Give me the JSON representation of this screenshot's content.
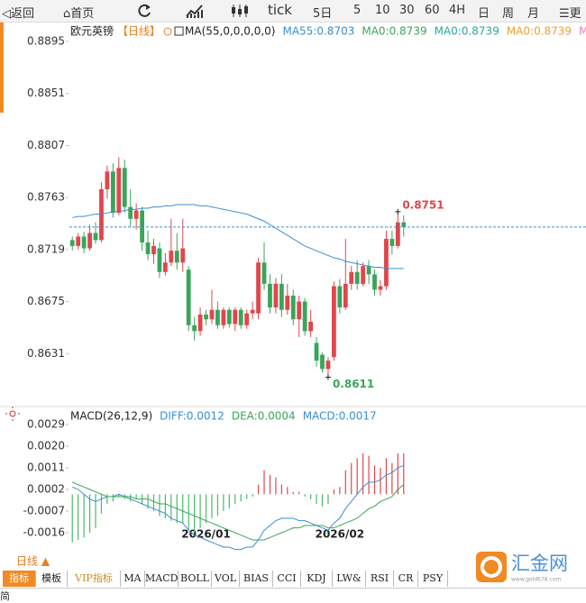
{
  "toolbar": [
    "返回",
    "首页",
    "tick",
    "5日",
    "5",
    "10",
    "30",
    "60",
    "4H",
    "日",
    "周",
    "月",
    "更"
  ],
  "indicator_tabs": [
    "指标",
    "模板",
    "VIP指标",
    "MA",
    "MACD",
    "BOLL",
    "VOL",
    "BIAS",
    "CCI",
    "KDJ",
    "LW&",
    "RSI",
    "CR",
    "PSY"
  ],
  "period_label": "日线 ▲",
  "logo": "汇金网",
  "logo_url": "www.gold678.com",
  "footer": "简",
  "chart_data": [
    {
      "type": "candlestick",
      "title": "欧元英镑",
      "subtitle": "【日线】",
      "indicator": "MA(55,0,0,0,0,0)",
      "categories": [
        null,
        null,
        null,
        null,
        null,
        null,
        null,
        null,
        null,
        null,
        null,
        null,
        null,
        null,
        null,
        null,
        null,
        null,
        null,
        null,
        null,
        null,
        null,
        "2026/01",
        null,
        null,
        null,
        null,
        null,
        null,
        null,
        null,
        null,
        null,
        null,
        null,
        null,
        null,
        null,
        null,
        null,
        null,
        null,
        null,
        null,
        null,
        "2026/02",
        null,
        null,
        null,
        null,
        null,
        null,
        null,
        null,
        null,
        null,
        null
      ],
      "open": [
        0.8727,
        0.8722,
        0.873,
        0.872,
        0.8733,
        0.8727,
        0.877,
        0.8785,
        0.875,
        0.8788,
        0.8755,
        0.8745,
        0.8752,
        0.8725,
        0.8715,
        0.872,
        0.87,
        0.8708,
        0.8718,
        0.8708,
        0.8702,
        0.8655,
        0.865,
        0.8664,
        0.866,
        0.8668,
        0.8655,
        0.8668,
        0.8656,
        0.8668,
        0.8655,
        0.8665,
        0.8665,
        0.8708,
        0.869,
        0.867,
        0.869,
        0.8668,
        0.868,
        0.866,
        0.8675,
        0.865,
        0.864,
        0.863,
        0.8618,
        0.8628,
        0.8688,
        0.867,
        0.869,
        0.87,
        0.869,
        0.8705,
        0.8698,
        0.8685,
        0.8688,
        0.8728,
        0.8722,
        0.8742
      ],
      "high": [
        0.873,
        0.8733,
        0.8734,
        0.874,
        0.8742,
        0.8776,
        0.879,
        0.8792,
        0.8797,
        0.8795,
        0.877,
        0.8758,
        0.8755,
        0.8735,
        0.8728,
        0.8725,
        0.8716,
        0.8745,
        0.8733,
        0.8745,
        0.8705,
        0.8662,
        0.867,
        0.8668,
        0.8685,
        0.8675,
        0.867,
        0.867,
        0.867,
        0.867,
        0.8668,
        0.8675,
        0.8712,
        0.8725,
        0.8698,
        0.8695,
        0.8698,
        0.869,
        0.8685,
        0.868,
        0.8678,
        0.8668,
        0.8645,
        0.8632,
        0.8628,
        0.8692,
        0.8694,
        0.8728,
        0.8705,
        0.871,
        0.8708,
        0.871,
        0.8702,
        0.8693,
        0.8735,
        0.8735,
        0.8751,
        0.8748
      ],
      "low": [
        0.8718,
        0.8719,
        0.8716,
        0.8718,
        0.8724,
        0.8725,
        0.8762,
        0.8746,
        0.8748,
        0.875,
        0.8738,
        0.8736,
        0.8718,
        0.871,
        0.8707,
        0.8695,
        0.8697,
        0.8705,
        0.8702,
        0.87,
        0.865,
        0.8642,
        0.8646,
        0.8655,
        0.8656,
        0.8652,
        0.8652,
        0.8653,
        0.865,
        0.8652,
        0.8652,
        0.866,
        0.866,
        0.8685,
        0.8665,
        0.8665,
        0.8662,
        0.8664,
        0.8655,
        0.8645,
        0.8646,
        0.8645,
        0.862,
        0.8615,
        0.8611,
        0.8625,
        0.8665,
        0.8668,
        0.8685,
        0.8685,
        0.8688,
        0.869,
        0.868,
        0.868,
        0.8685,
        0.8715,
        0.872,
        0.873
      ],
      "close": [
        0.8722,
        0.873,
        0.872,
        0.8733,
        0.8727,
        0.877,
        0.8785,
        0.875,
        0.8788,
        0.8755,
        0.8745,
        0.8752,
        0.8725,
        0.8715,
        0.8722,
        0.87,
        0.8708,
        0.8718,
        0.8708,
        0.872,
        0.8655,
        0.865,
        0.8664,
        0.866,
        0.8668,
        0.8655,
        0.8668,
        0.8656,
        0.8668,
        0.8655,
        0.8665,
        0.8668,
        0.8708,
        0.869,
        0.867,
        0.869,
        0.8668,
        0.868,
        0.866,
        0.8675,
        0.865,
        0.8658,
        0.8625,
        0.8618,
        0.8625,
        0.8688,
        0.867,
        0.869,
        0.87,
        0.869,
        0.8705,
        0.8698,
        0.8685,
        0.8688,
        0.8728,
        0.8722,
        0.8742,
        0.8738
      ],
      "up_color": "#e0464c",
      "down_color": "#3aa55a",
      "series": [
        {
          "name": "MA55:0.8703",
          "color": "#3b8ed3",
          "values": [
            0.8746,
            0.8747,
            0.8747,
            0.8748,
            0.8749,
            0.8749,
            0.875,
            0.8751,
            0.8751,
            0.8752,
            0.8753,
            0.8753,
            0.8754,
            0.8754,
            0.8755,
            0.8755,
            0.8756,
            0.8756,
            0.8757,
            0.8757,
            0.8757,
            0.8757,
            0.8756,
            0.8756,
            0.8755,
            0.8754,
            0.8753,
            0.8752,
            0.8751,
            0.875,
            0.8749,
            0.8747,
            0.8745,
            0.8743,
            0.874,
            0.8737,
            0.8734,
            0.8731,
            0.8728,
            0.8725,
            0.8722,
            0.872,
            0.8718,
            0.8716,
            0.8714,
            0.8712,
            0.8711,
            0.8709,
            0.8708,
            0.8707,
            0.8706,
            0.8705,
            0.8704,
            0.8704,
            0.8703,
            0.8703,
            0.8703,
            0.8703
          ]
        }
      ],
      "readouts": [
        {
          "label": "MA0:0.8739",
          "color": "#3aa55a"
        },
        {
          "label": "MA0:0.8739",
          "color": "#28a9a0"
        },
        {
          "label": "MA0:0.8739",
          "color": "#f0a030"
        },
        {
          "label": "MA0:",
          "color": "#e879c0"
        }
      ],
      "annotations": [
        {
          "label": "0.8751",
          "value": 0.8751,
          "index": 56,
          "color": "#e0464c"
        },
        {
          "label": "0.8611",
          "value": 0.8611,
          "index": 44,
          "color": "#3aa55a"
        }
      ],
      "ylim": [
        0.8587,
        0.8911
      ],
      "yticks": [
        0.8895,
        0.8851,
        0.8807,
        0.8763,
        0.8719,
        0.8675,
        0.8631
      ]
    },
    {
      "type": "macd",
      "title": "MACD(26,12,9)",
      "series": [
        {
          "name": "DIFF:0.0012",
          "color": "#3b8ed3",
          "values": [
            0.0003,
            0.0002,
            0,
            -0.0002,
            -0.0003,
            -0.0002,
            -0.0001,
            -0.0001,
            0,
            -0.0001,
            -0.0002,
            -0.0003,
            -0.0004,
            -0.0005,
            -0.0006,
            -0.0007,
            -0.0008,
            -0.001,
            -0.0011,
            -0.0012,
            -0.0015,
            -0.0017,
            -0.0018,
            -0.0019,
            -0.002,
            -0.0021,
            -0.0022,
            -0.0022,
            -0.0023,
            -0.0023,
            -0.0022,
            -0.0022,
            -0.0019,
            -0.0015,
            -0.0013,
            -0.0011,
            -0.001,
            -0.001,
            -0.001,
            -0.0011,
            -0.0011,
            -0.0012,
            -0.0013,
            -0.0014,
            -0.0015,
            -0.0012,
            -0.001,
            -0.0006,
            -0.0003,
            0,
            0.0003,
            0.0005,
            0.0005,
            0.0006,
            0.0008,
            0.0009,
            0.0011,
            0.0012
          ]
        },
        {
          "name": "DEA:0.0004",
          "color": "#3aa55a",
          "values": [
            0.0005,
            0.0004,
            0.0003,
            0.0002,
            0.0001,
            0,
            -0.0001,
            -0.0001,
            -0.0001,
            -0.0001,
            -0.0001,
            -0.0002,
            -0.0002,
            -0.0002,
            -0.0003,
            -0.0004,
            -0.0004,
            -0.0005,
            -0.0006,
            -0.0007,
            -0.0008,
            -0.0009,
            -0.001,
            -0.0011,
            -0.0012,
            -0.0013,
            -0.0014,
            -0.0015,
            -0.0016,
            -0.0017,
            -0.0018,
            -0.0019,
            -0.0019,
            -0.0019,
            -0.0018,
            -0.0017,
            -0.0016,
            -0.0015,
            -0.0014,
            -0.0014,
            -0.0013,
            -0.0013,
            -0.0013,
            -0.0013,
            -0.0014,
            -0.0014,
            -0.0013,
            -0.0012,
            -0.0011,
            -0.001,
            -0.0008,
            -0.0006,
            -0.0005,
            -0.0003,
            -0.0002,
            -0.0001,
            0.0002,
            0.0004
          ]
        },
        {
          "name": "MACD:0.0017",
          "color": "#3b8ed3",
          "bars": true,
          "values": [
            -0.002,
            -0.0019,
            -0.0018,
            -0.0016,
            -0.0014,
            -0.0008,
            -0.0004,
            -0.0003,
            -0.0001,
            -0.0002,
            -0.0003,
            -0.0002,
            -0.0004,
            -0.0006,
            -0.0007,
            -0.0009,
            -0.001,
            -0.0011,
            -0.0012,
            -0.0012,
            -0.0015,
            -0.0016,
            -0.0014,
            -0.0012,
            -0.001,
            -0.0009,
            -0.0007,
            -0.0006,
            -0.0004,
            -0.0003,
            -0.0002,
            -0.0001,
            0.0004,
            0.001,
            0.0008,
            0.0007,
            0.0004,
            0.0003,
            0.0001,
            0.0001,
            -0.0001,
            -0.0002,
            -0.0004,
            -0.0005,
            -0.0004,
            0.0002,
            0.0003,
            0.001,
            0.0013,
            0.0015,
            0.0017,
            0.0016,
            0.0012,
            0.0011,
            0.0015,
            0.0013,
            0.0017,
            0.0017
          ]
        }
      ],
      "up_color": "#e0464c",
      "down_color": "#4cb86a",
      "ylim": [
        -0.0025,
        0.0035
      ],
      "yticks": [
        0.0029,
        {
          "value": 0.002,
          "label": "0.0020"
        },
        0.0011,
        0.0002,
        -0.0007,
        -0.0016
      ]
    }
  ]
}
